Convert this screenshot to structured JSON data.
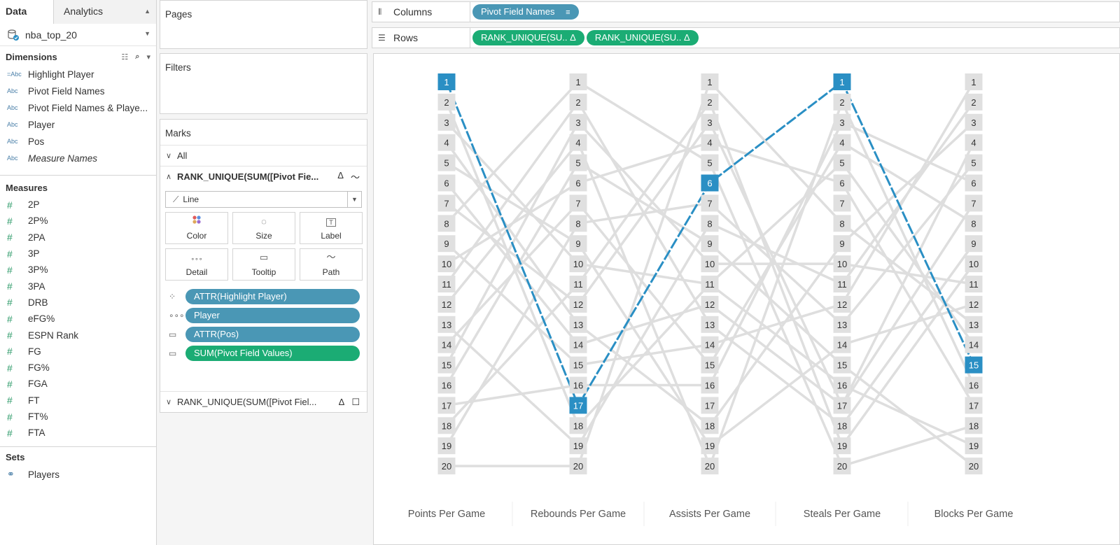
{
  "tabs": {
    "data": "Data",
    "analytics": "Analytics"
  },
  "datasource": {
    "name": "nba_top_20"
  },
  "dimensions": {
    "title": "Dimensions",
    "items": [
      {
        "type": "=Abc",
        "label": "Highlight Player"
      },
      {
        "type": "Abc",
        "label": "Pivot Field Names"
      },
      {
        "type": "Abc",
        "label": "Pivot Field Names & Playe..."
      },
      {
        "type": "Abc",
        "label": "Player"
      },
      {
        "type": "Abc",
        "label": "Pos"
      },
      {
        "type": "Abc",
        "label": "Measure Names",
        "italic": true
      }
    ]
  },
  "measures": {
    "title": "Measures",
    "items": [
      "2P",
      "2P%",
      "2PA",
      "3P",
      "3P%",
      "3PA",
      "DRB",
      "eFG%",
      "ESPN Rank",
      "FG",
      "FG%",
      "FGA",
      "FT",
      "FT%",
      "FTA"
    ]
  },
  "sets": {
    "title": "Sets",
    "items": [
      "Players"
    ]
  },
  "pages": {
    "title": "Pages"
  },
  "filters": {
    "title": "Filters"
  },
  "marks": {
    "title": "Marks",
    "all": "All",
    "field1": "RANK_UNIQUE(SUM([Pivot Fie...",
    "mark_type": "Line",
    "buttons": [
      "Color",
      "Size",
      "Label",
      "Detail",
      "Tooltip",
      "Path"
    ],
    "pills": [
      {
        "icon": "color",
        "label": "ATTR(Highlight Player)",
        "color": "blue"
      },
      {
        "icon": "detail",
        "label": "Player",
        "color": "blue"
      },
      {
        "icon": "tooltip",
        "label": "ATTR(Pos)",
        "color": "blue"
      },
      {
        "icon": "tooltip",
        "label": "SUM(Pivot Field Values)",
        "color": "green"
      }
    ],
    "field2": "RANK_UNIQUE(SUM([Pivot Fiel..."
  },
  "columns": {
    "label": "Columns",
    "pills": [
      "Pivot Field Names"
    ]
  },
  "rows": {
    "label": "Rows",
    "pills": [
      "RANK_UNIQUE(SU.. Δ",
      "RANK_UNIQUE(SU.. Δ"
    ]
  },
  "chart_data": {
    "type": "line",
    "categories": [
      "Points Per Game",
      "Rebounds Per Game",
      "Assists Per Game",
      "Steals Per Game",
      "Blocks Per Game"
    ],
    "ranks": [
      1,
      2,
      3,
      4,
      5,
      6,
      7,
      8,
      9,
      10,
      11,
      12,
      13,
      14,
      15,
      16,
      17,
      18,
      19,
      20
    ],
    "y_reversed": true,
    "ylim": [
      1,
      20
    ],
    "highlight_color": "#2a8fc4",
    "line_color": "#dedede",
    "highlight": {
      "values": [
        1,
        17,
        6,
        1,
        15
      ]
    },
    "series": [
      {
        "values": [
          1,
          17,
          6,
          1,
          15
        ]
      },
      {
        "values": [
          2,
          18,
          11,
          5,
          14
        ]
      },
      {
        "values": [
          3,
          10,
          11,
          16,
          19
        ]
      },
      {
        "values": [
          4,
          13,
          18,
          9,
          3
        ]
      },
      {
        "values": [
          5,
          9,
          19,
          14,
          12
        ]
      },
      {
        "values": [
          6,
          14,
          12,
          17,
          4
        ]
      },
      {
        "values": [
          7,
          12,
          3,
          17,
          7
        ]
      },
      {
        "values": [
          8,
          1,
          5,
          20,
          18
        ]
      },
      {
        "values": [
          9,
          15,
          14,
          12,
          1
        ]
      },
      {
        "values": [
          10,
          6,
          4,
          6,
          17
        ]
      },
      {
        "values": [
          11,
          2,
          13,
          18,
          9
        ]
      },
      {
        "values": [
          12,
          4,
          20,
          2,
          16
        ]
      },
      {
        "values": [
          13,
          19,
          8,
          11,
          2
        ]
      },
      {
        "values": [
          14,
          7,
          15,
          4,
          8
        ]
      },
      {
        "values": [
          15,
          3,
          10,
          10,
          11
        ]
      },
      {
        "values": [
          16,
          5,
          9,
          15,
          20
        ]
      },
      {
        "values": [
          17,
          16,
          16,
          3,
          6
        ]
      },
      {
        "values": [
          18,
          11,
          2,
          19,
          10
        ]
      },
      {
        "values": [
          19,
          8,
          7,
          13,
          5
        ]
      },
      {
        "values": [
          20,
          20,
          1,
          8,
          13
        ]
      }
    ]
  }
}
